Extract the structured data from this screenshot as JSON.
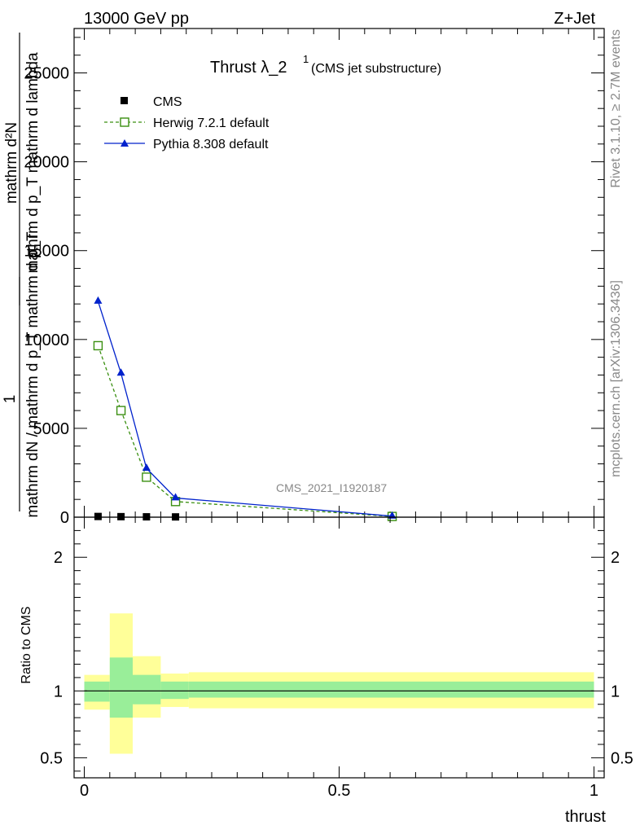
{
  "header": {
    "left": "13000 GeV pp",
    "right": "Z+Jet"
  },
  "side_texts": {
    "rivet": "Rivet 3.1.10, ≥ 2.7M events",
    "mcplots": "mcplots.cern.ch [arXiv:1306.3436]"
  },
  "analysis_id": "CMS_2021_I1920187",
  "main_title": {
    "text": "Thrust λ_2",
    "sup": "1",
    "note": "(CMS jet substructure)"
  },
  "ylabel_main": {
    "top_numerator": "mathrm d²N",
    "top_denominator": "mathrm d p_T mathrm d lambda",
    "prefactor": "1",
    "bottom_text": "mathrm dN / mathrm d p_T mathrm d p_T"
  },
  "ylabel_ratio": "Ratio to CMS",
  "xlabel": "thrust",
  "chart_data": [
    {
      "type": "line",
      "panel": "main",
      "xlim": [
        -0.02,
        1.02
      ],
      "ylim": [
        0,
        27500
      ],
      "xticks": [
        "0",
        "0.5",
        "1"
      ],
      "yticks": [
        "0",
        "5000",
        "10000",
        "15000",
        "20000",
        "25000"
      ],
      "legend_position": "top-left",
      "series": [
        {
          "name": "CMS",
          "style": "data",
          "color": "#000000",
          "x": [
            0.027,
            0.072,
            0.122,
            0.179,
            0.604
          ],
          "y": [
            40,
            30,
            20,
            15,
            5
          ]
        },
        {
          "name": "Herwig 7.2.1 default",
          "style": "dashed-open-square",
          "color": "#3a8f10",
          "x": [
            0.027,
            0.072,
            0.122,
            0.179,
            0.604
          ],
          "y": [
            9650,
            6000,
            2250,
            880,
            40
          ]
        },
        {
          "name": "Pythia 8.308 default",
          "style": "solid-filled-triangle",
          "color": "#0022cc",
          "x": [
            0.027,
            0.072,
            0.122,
            0.179,
            0.604
          ],
          "y": [
            12150,
            8100,
            2750,
            1080,
            60
          ]
        }
      ]
    },
    {
      "type": "area",
      "panel": "ratio",
      "xlim": [
        -0.02,
        1.02
      ],
      "ylim": [
        0.35,
        2.3
      ],
      "yticks": [
        "0.5",
        "1",
        "2"
      ],
      "reference_line": 1,
      "bands": [
        {
          "x0": 0.0,
          "x1": 0.05,
          "inner": [
            0.92,
            1.07
          ],
          "outer": [
            0.86,
            1.12
          ]
        },
        {
          "x0": 0.05,
          "x1": 0.095,
          "inner": [
            0.8,
            1.25
          ],
          "outer": [
            0.53,
            1.58
          ]
        },
        {
          "x0": 0.095,
          "x1": 0.15,
          "inner": [
            0.9,
            1.12
          ],
          "outer": [
            0.8,
            1.26
          ]
        },
        {
          "x0": 0.15,
          "x1": 0.205,
          "inner": [
            0.94,
            1.07
          ],
          "outer": [
            0.88,
            1.13
          ]
        },
        {
          "x0": 0.205,
          "x1": 1.0,
          "inner": [
            0.95,
            1.07
          ],
          "outer": [
            0.87,
            1.14
          ]
        }
      ],
      "band_colors": {
        "inner": "#99ee99",
        "outer": "#ffff99"
      }
    }
  ]
}
